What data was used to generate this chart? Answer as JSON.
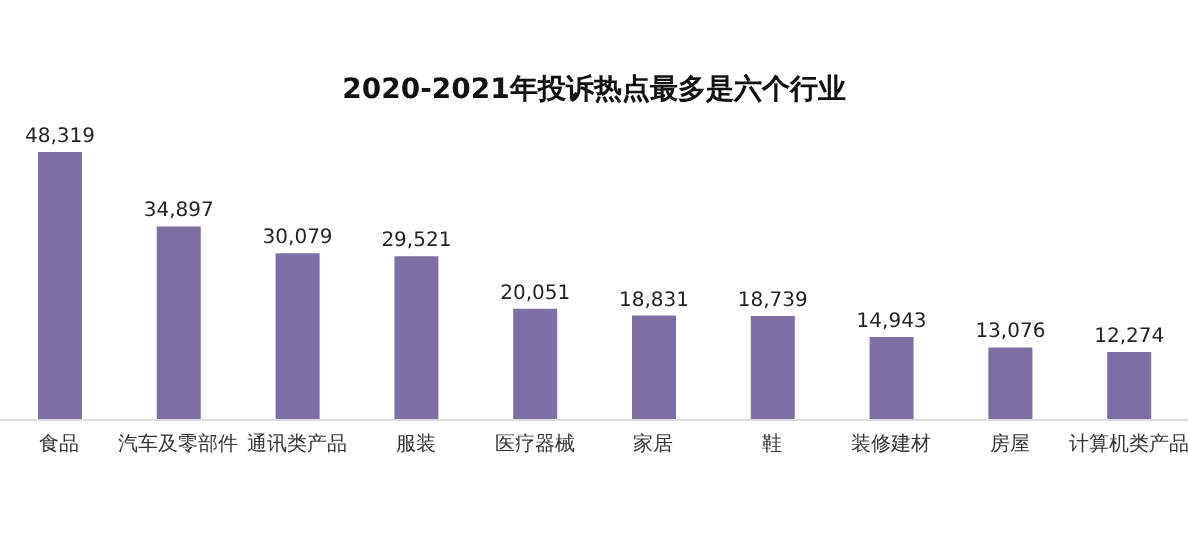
{
  "chart_data": {
    "type": "bar",
    "title": "2020-2021年投诉热点最多是六个行业",
    "categories": [
      "食品",
      "汽车及零部件",
      "通讯类产品",
      "服装",
      "医疗器械",
      "家居",
      "鞋",
      "装修建材",
      "房屋",
      "计算机类产品"
    ],
    "values": [
      48319,
      34897,
      30079,
      29521,
      20051,
      18831,
      18739,
      14943,
      13076,
      12274
    ],
    "value_labels": [
      "48,319",
      "34,897",
      "30,079",
      "29,521",
      "20,051",
      "18,831",
      "18,739",
      "14,943",
      "13,076",
      "12,274"
    ],
    "color": "#7b6fa3"
  }
}
